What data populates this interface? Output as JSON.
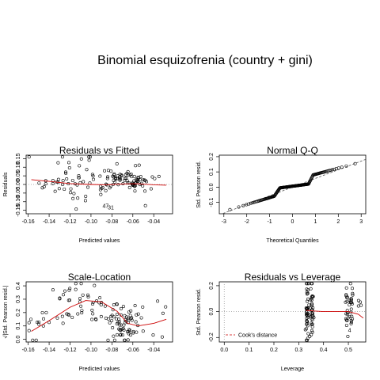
{
  "figure": {
    "title": "Binomial esquizofrenia (country + gini)"
  },
  "chart_data": [
    {
      "id": "rvf",
      "type": "scatter",
      "title": "Residuals vs Fitted",
      "xlabel": "Predicted values",
      "ylabel": "Residuals",
      "xlim": [
        -0.162,
        -0.022
      ],
      "ylim": [
        -0.17,
        0.17
      ],
      "xticks": [
        -0.16,
        -0.14,
        -0.12,
        -0.1,
        -0.08,
        -0.06,
        -0.04
      ],
      "xtick_labels": [
        "-0.16",
        "-0.14",
        "-0.12",
        "-0.10",
        "-0.08",
        "-0.06",
        "-0.04"
      ],
      "yticks": [
        -0.15,
        -0.1,
        -0.05,
        0.0,
        0.05,
        0.1,
        0.15
      ],
      "ytick_labels": [
        "-0.15",
        "-0.10",
        "-0.05",
        "0.00",
        "0.05",
        "0.10",
        "0.15"
      ],
      "reference_line": {
        "y": 0,
        "style": "dotted",
        "color": "#999999"
      },
      "smoother": {
        "color": "#cc0000",
        "x": [
          -0.157,
          -0.14,
          -0.12,
          -0.1,
          -0.085,
          -0.07,
          -0.055,
          -0.04,
          -0.028
        ],
        "y": [
          0.028,
          0.018,
          0.005,
          0.0,
          -0.002,
          0.003,
          0.004,
          -0.002,
          -0.004
        ]
      },
      "point_labels": [
        {
          "x": -0.086,
          "y": -0.135,
          "text": "47"
        },
        {
          "x": -0.081,
          "y": -0.145,
          "text": "31"
        }
      ],
      "clusters": [
        {
          "cx": -0.103,
          "cy": 0.06,
          "sx": 0.02,
          "sy": 0.08,
          "n": 35
        },
        {
          "cx": -0.1,
          "cy": -0.02,
          "sx": 0.022,
          "sy": 0.05,
          "n": 25
        },
        {
          "cx": -0.069,
          "cy": 0.03,
          "sx": 0.009,
          "sy": 0.025,
          "n": 45
        },
        {
          "cx": -0.058,
          "cy": 0.005,
          "sx": 0.006,
          "sy": 0.015,
          "n": 22
        },
        {
          "cx": -0.14,
          "cy": 0.015,
          "sx": 0.01,
          "sy": 0.02,
          "n": 10
        },
        {
          "cx": -0.033,
          "cy": 0.0,
          "sx": 0.006,
          "sy": 0.06,
          "n": 4
        }
      ]
    },
    {
      "id": "qq",
      "type": "scatter",
      "title": "Normal Q-Q",
      "xlabel": "Theoretical Quantiles",
      "ylabel": "Std. Pearson resid.",
      "xlim": [
        -3.2,
        3.2
      ],
      "ylim": [
        -0.175,
        0.21
      ],
      "xticks": [
        -3,
        -2,
        -1,
        0,
        1,
        2,
        3
      ],
      "xtick_labels": [
        "-3",
        "-2",
        "-1",
        "0",
        "1",
        "2",
        "3"
      ],
      "yticks": [
        -0.1,
        0.0,
        0.1,
        0.2
      ],
      "ytick_labels": [
        "-0.1",
        "0.0",
        "0.1",
        "0.2"
      ],
      "reference_line": {
        "intercept": 0.0,
        "slope": 0.057,
        "style": "dashed",
        "color": "#555555"
      },
      "n_points": 160
    },
    {
      "id": "sl",
      "type": "scatter",
      "title": "Scale-Location",
      "xlabel": "Predicted values",
      "ylabel": "√|Std. Pearson resid.|",
      "xlim": [
        -0.162,
        -0.022
      ],
      "ylim": [
        -0.02,
        0.43
      ],
      "xticks": [
        -0.16,
        -0.14,
        -0.12,
        -0.1,
        -0.08,
        -0.06,
        -0.04
      ],
      "xtick_labels": [
        "-0.16",
        "-0.14",
        "-0.12",
        "-0.10",
        "-0.08",
        "-0.06",
        "-0.04"
      ],
      "yticks": [
        0.0,
        0.1,
        0.2,
        0.3,
        0.4
      ],
      "ytick_labels": [
        "0.0",
        "0.1",
        "0.2",
        "0.3",
        "0.4"
      ],
      "smoother": {
        "color": "#cc0000",
        "x": [
          -0.157,
          -0.14,
          -0.12,
          -0.105,
          -0.09,
          -0.075,
          -0.065,
          -0.055,
          -0.04,
          -0.028
        ],
        "y": [
          0.06,
          0.14,
          0.24,
          0.29,
          0.28,
          0.21,
          0.12,
          0.1,
          0.12,
          0.15
        ]
      },
      "clusters": [
        {
          "cx": -0.103,
          "cy": 0.24,
          "sx": 0.02,
          "sy": 0.1,
          "n": 55
        },
        {
          "cx": -0.068,
          "cy": 0.12,
          "sx": 0.008,
          "sy": 0.06,
          "n": 60
        },
        {
          "cx": -0.14,
          "cy": 0.1,
          "sx": 0.01,
          "sy": 0.07,
          "n": 12
        },
        {
          "cx": -0.035,
          "cy": 0.2,
          "sx": 0.006,
          "sy": 0.12,
          "n": 5
        }
      ]
    },
    {
      "id": "rvl",
      "type": "scatter",
      "title": "Residuals vs Leverage",
      "xlabel": "Leverage",
      "ylabel": "Std. Pearson resid.",
      "xlim": [
        -0.02,
        0.57
      ],
      "ylim": [
        -0.235,
        0.23
      ],
      "xticks": [
        0.0,
        0.1,
        0.2,
        0.3,
        0.4,
        0.5
      ],
      "xtick_labels": [
        "0.0",
        "0.1",
        "0.2",
        "0.3",
        "0.4",
        "0.5"
      ],
      "yticks": [
        -0.2,
        0.0,
        0.2
      ],
      "ytick_labels": [
        "-0.2",
        "0.0",
        "0.2"
      ],
      "reference_line": {
        "y": 0,
        "x": 0,
        "style": "dotted",
        "color": "#999999"
      },
      "smoother": {
        "color": "#cc0000",
        "x": [
          0.33,
          0.36,
          0.4,
          0.45,
          0.5,
          0.54,
          0.56
        ],
        "y": [
          0.01,
          0.005,
          0.0,
          0.0,
          0.0,
          -0.02,
          -0.05
        ]
      },
      "legend": {
        "label": "Cook's distance",
        "position": "bottom-left",
        "style": "dashed",
        "color": "#cc0000"
      },
      "point_labels": [
        {
          "x": 0.505,
          "y": -0.16,
          "text": "4"
        }
      ],
      "clusters": [
        {
          "cx": 0.335,
          "cy": 0.0,
          "sx": 0.004,
          "sy": 0.12,
          "n": 40
        },
        {
          "cx": 0.352,
          "cy": 0.0,
          "sx": 0.004,
          "sy": 0.12,
          "n": 35
        },
        {
          "cx": 0.497,
          "cy": 0.02,
          "sx": 0.004,
          "sy": 0.09,
          "n": 20
        },
        {
          "cx": 0.512,
          "cy": 0.0,
          "sx": 0.004,
          "sy": 0.09,
          "n": 18
        },
        {
          "cx": 0.545,
          "cy": 0.06,
          "sx": 0.008,
          "sy": 0.05,
          "n": 4
        }
      ]
    }
  ]
}
